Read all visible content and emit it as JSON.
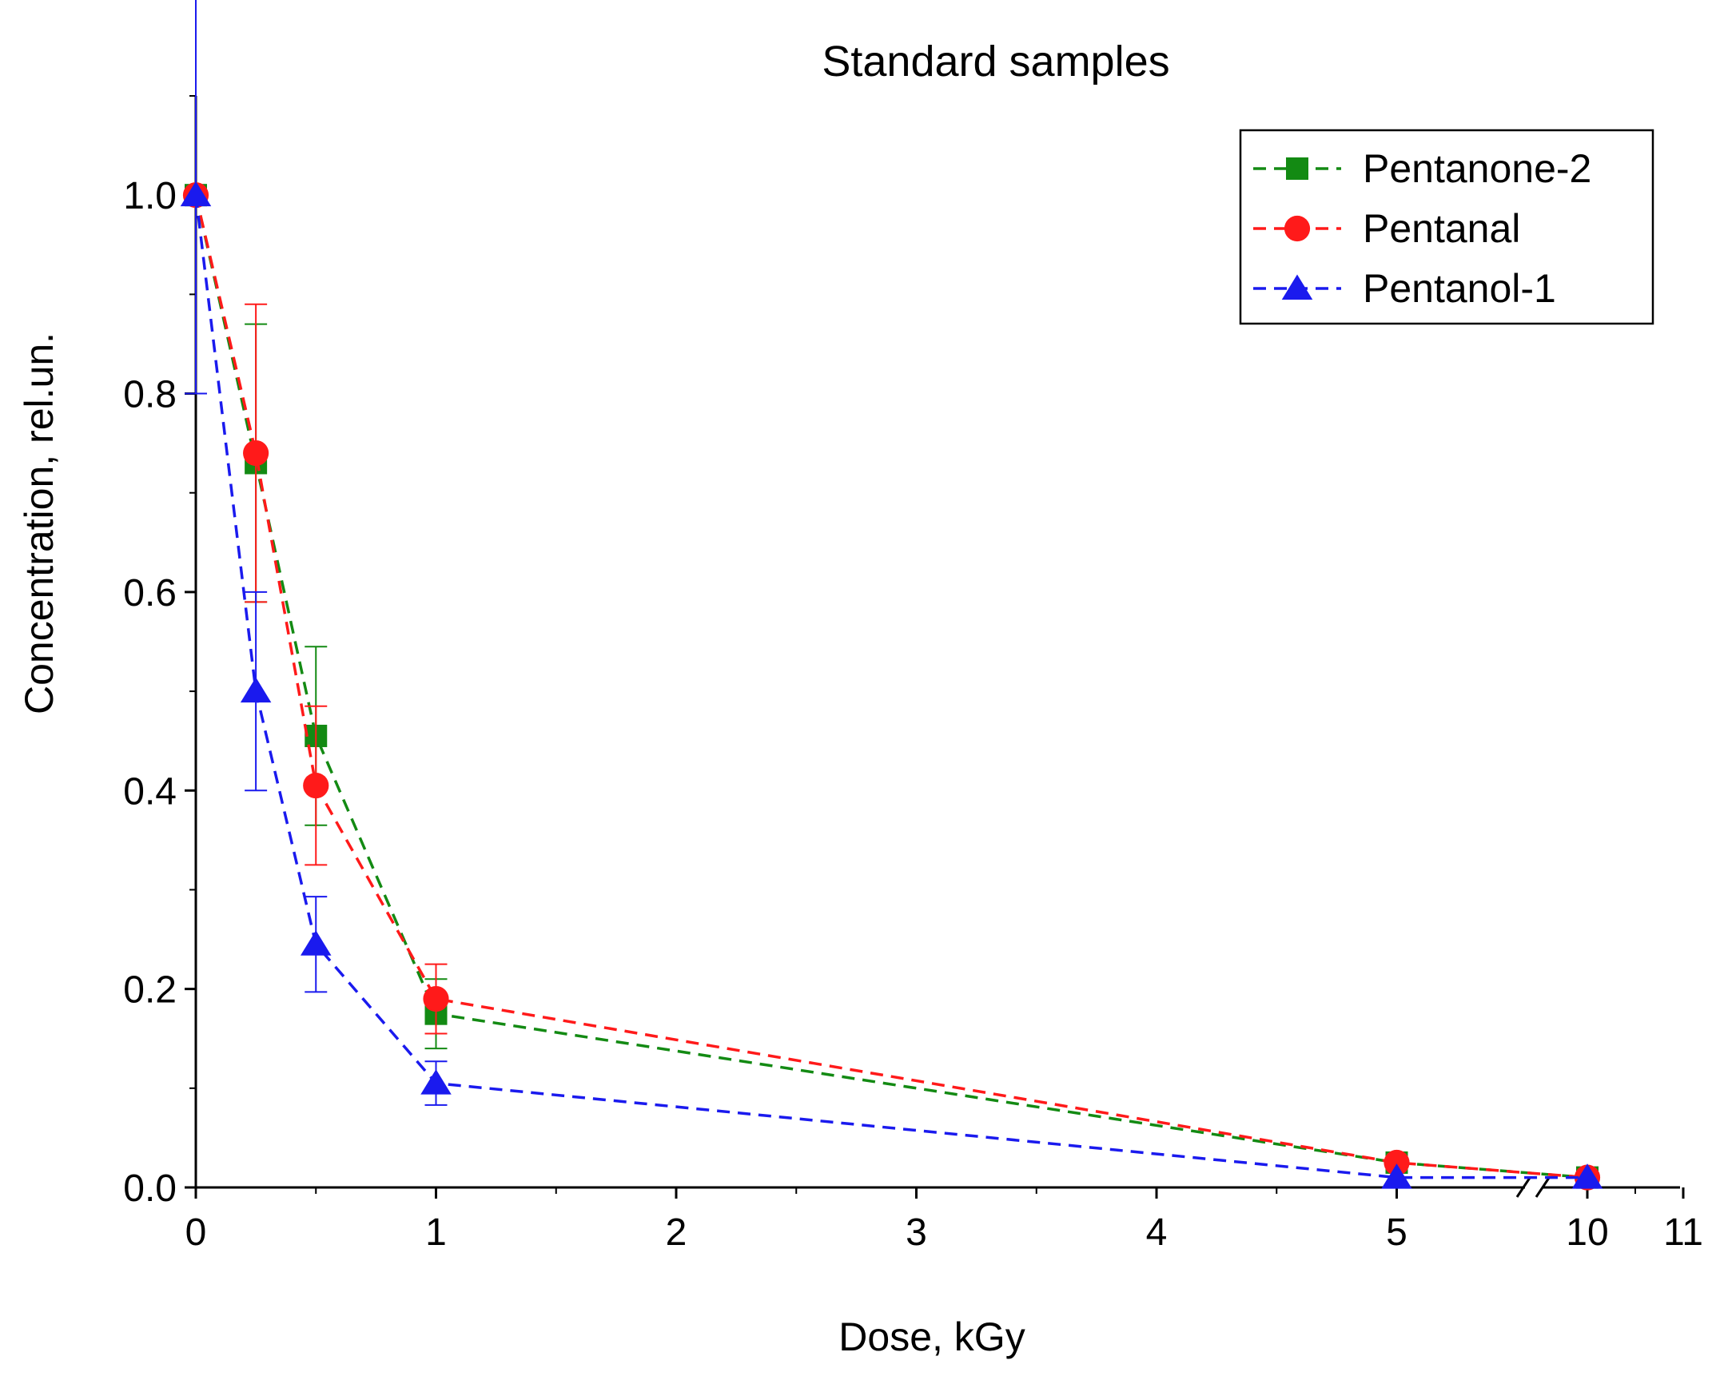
{
  "chart_data": {
    "type": "line",
    "title": "Standard samples",
    "xlabel": "Dose, kGy",
    "ylabel": "Concentration, rel.un.",
    "xlim": [
      0,
      11
    ],
    "ylim": [
      0,
      1.1
    ],
    "x_axis_break": "between 5 and 10",
    "x_ticks": [
      {
        "label": "0",
        "value": 0
      },
      {
        "label": "1",
        "value": 1
      },
      {
        "label": "2",
        "value": 2
      },
      {
        "label": "3",
        "value": 3
      },
      {
        "label": "4",
        "value": 4
      },
      {
        "label": "5",
        "value": 5
      },
      {
        "label": "10",
        "value": 10
      },
      {
        "label": "11",
        "value": 11
      }
    ],
    "y_ticks": [
      {
        "label": "0.0",
        "value": 0.0
      },
      {
        "label": "0.2",
        "value": 0.2
      },
      {
        "label": "0.4",
        "value": 0.4
      },
      {
        "label": "0.6",
        "value": 0.6
      },
      {
        "label": "0.8",
        "value": 0.8
      },
      {
        "label": "1.0",
        "value": 1.0
      }
    ],
    "legend_position": "top-right",
    "series": [
      {
        "name": "Pentanone-2",
        "color": "#138a13",
        "marker": "square",
        "x": [
          0,
          0.25,
          0.5,
          1,
          5,
          10
        ],
        "y": [
          1.0,
          0.73,
          0.455,
          0.175,
          0.025,
          0.01
        ],
        "err": [
          0.0,
          0.14,
          0.09,
          0.035,
          0.0,
          0.0
        ]
      },
      {
        "name": "Pentanal",
        "color": "#ff1a1a",
        "marker": "circle",
        "x": [
          0,
          0.25,
          0.5,
          1,
          5,
          10
        ],
        "y": [
          1.0,
          0.74,
          0.405,
          0.19,
          0.025,
          0.01
        ],
        "err": [
          0.0,
          0.15,
          0.08,
          0.035,
          0.0,
          0.0
        ]
      },
      {
        "name": "Pentanol-1",
        "color": "#1a1aee",
        "marker": "triangle",
        "x": [
          0,
          0.25,
          0.5,
          1,
          5,
          10
        ],
        "y": [
          1.0,
          0.5,
          0.245,
          0.105,
          0.01,
          0.01
        ],
        "err": [
          0.2,
          0.1,
          0.048,
          0.022,
          0.0,
          0.0
        ]
      }
    ]
  }
}
